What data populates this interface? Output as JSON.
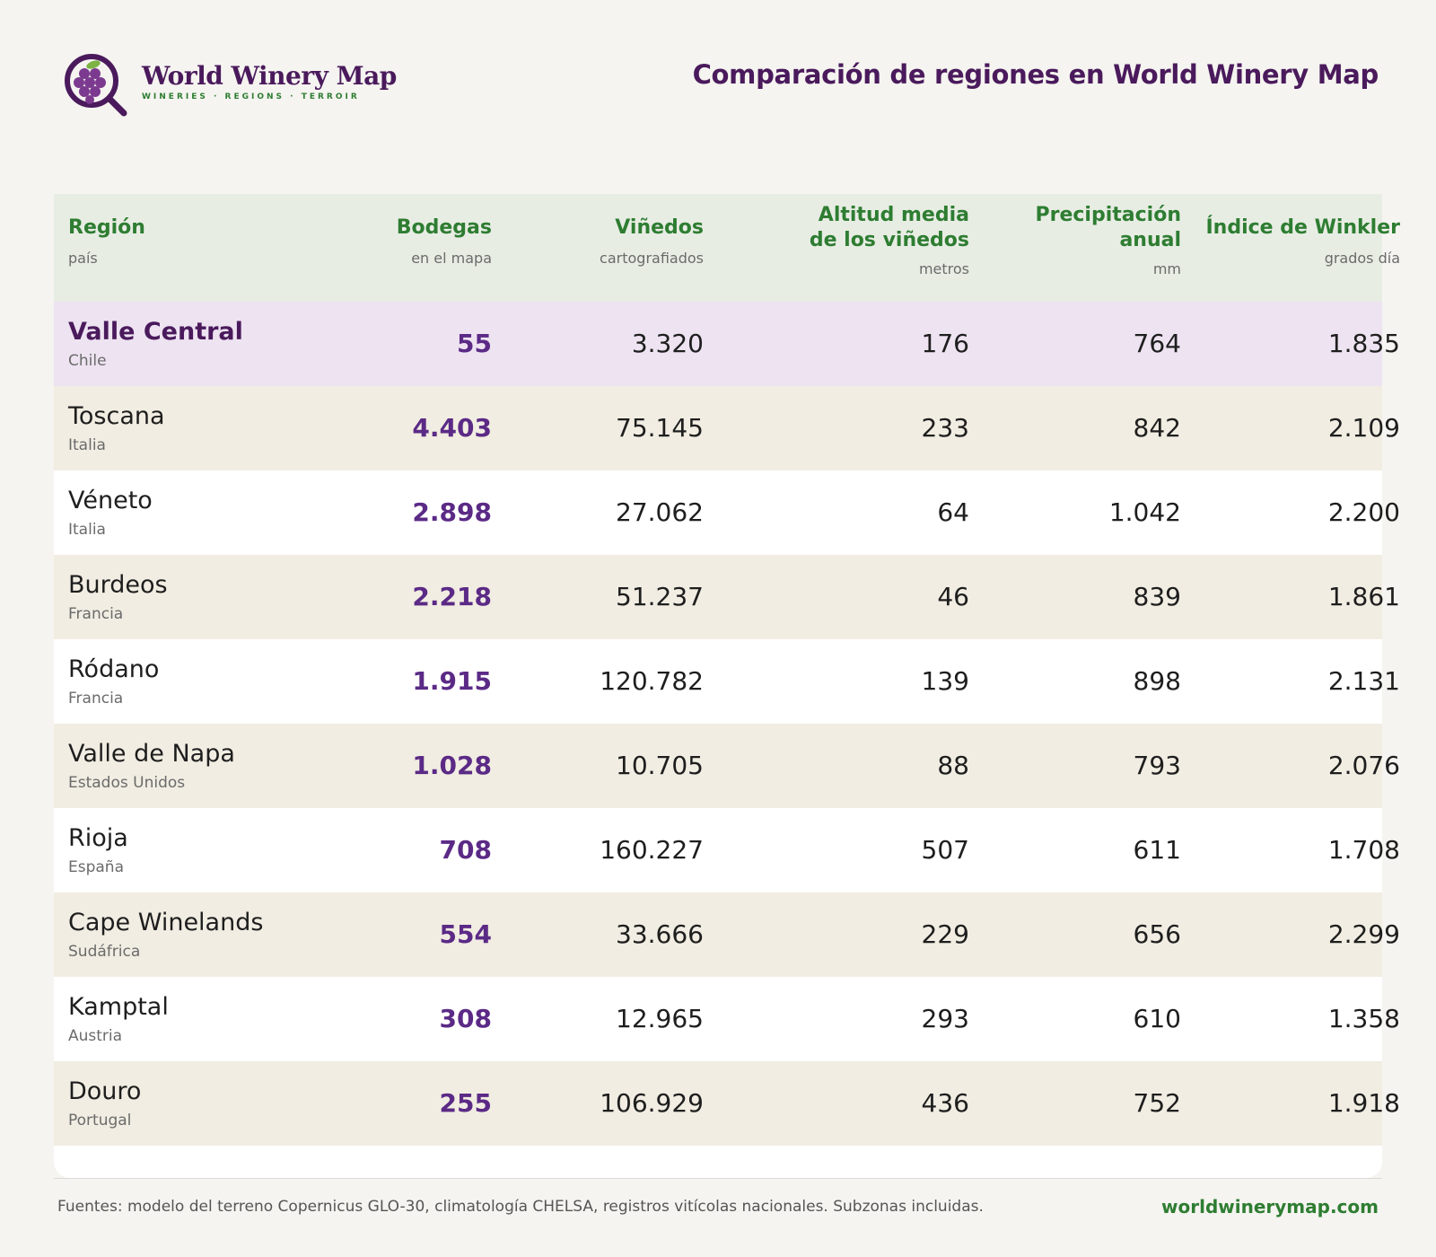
{
  "brand": {
    "name": "World Winery Map",
    "tagline": "WINERIES · REGIONS · TERROIR"
  },
  "page_title": "Comparación de regiones en World Winery Map",
  "table": {
    "columns": [
      {
        "title": "Región",
        "unit": "país"
      },
      {
        "title": "Bodegas",
        "unit": "en el mapa"
      },
      {
        "title": "Viñedos",
        "unit": "cartografiados"
      },
      {
        "title": "Altitud media de los viñedos",
        "title_line1": "Altitud media",
        "title_line2": "de los viñedos",
        "unit": "metros"
      },
      {
        "title": "Precipitación anual",
        "title_line1": "Precipitación",
        "title_line2": "anual",
        "unit": "mm"
      },
      {
        "title": "Índice de Winkler",
        "unit": "grados día"
      }
    ],
    "rows": [
      {
        "region": "Valle Central",
        "country": "Chile",
        "bodegas": "55",
        "vinedos": "3.320",
        "altitud": "176",
        "precipitacion": "764",
        "winkler": "1.835",
        "highlighted": true
      },
      {
        "region": "Toscana",
        "country": "Italia",
        "bodegas": "4.403",
        "vinedos": "75.145",
        "altitud": "233",
        "precipitacion": "842",
        "winkler": "2.109"
      },
      {
        "region": "Véneto",
        "country": "Italia",
        "bodegas": "2.898",
        "vinedos": "27.062",
        "altitud": "64",
        "precipitacion": "1.042",
        "winkler": "2.200"
      },
      {
        "region": "Burdeos",
        "country": "Francia",
        "bodegas": "2.218",
        "vinedos": "51.237",
        "altitud": "46",
        "precipitacion": "839",
        "winkler": "1.861"
      },
      {
        "region": "Ródano",
        "country": "Francia",
        "bodegas": "1.915",
        "vinedos": "120.782",
        "altitud": "139",
        "precipitacion": "898",
        "winkler": "2.131"
      },
      {
        "region": "Valle de Napa",
        "country": "Estados Unidos",
        "bodegas": "1.028",
        "vinedos": "10.705",
        "altitud": "88",
        "precipitacion": "793",
        "winkler": "2.076"
      },
      {
        "region": "Rioja",
        "country": "España",
        "bodegas": "708",
        "vinedos": "160.227",
        "altitud": "507",
        "precipitacion": "611",
        "winkler": "1.708"
      },
      {
        "region": "Cape Winelands",
        "country": "Sudáfrica",
        "bodegas": "554",
        "vinedos": "33.666",
        "altitud": "229",
        "precipitacion": "656",
        "winkler": "2.299"
      },
      {
        "region": "Kamptal",
        "country": "Austria",
        "bodegas": "308",
        "vinedos": "12.965",
        "altitud": "293",
        "precipitacion": "610",
        "winkler": "1.358"
      },
      {
        "region": "Douro",
        "country": "Portugal",
        "bodegas": "255",
        "vinedos": "106.929",
        "altitud": "436",
        "precipitacion": "752",
        "winkler": "1.918"
      }
    ]
  },
  "footer": {
    "sources": "Fuentes: modelo del terreno Copernicus GLO-30, climatología CHELSA, registros vitícolas nacionales. Subzonas incluidas.",
    "url": "worldwinerymap.com"
  },
  "colors": {
    "brand_purple": "#4a1a5c",
    "accent_green": "#2e7d32",
    "bodegas_purple": "#5b2a86",
    "highlight_row": "#ede3f1",
    "alt_row": "#f1ede2",
    "header_bg": "#e8ede4"
  },
  "icons": [
    "grape-magnifier-logo-icon"
  ]
}
